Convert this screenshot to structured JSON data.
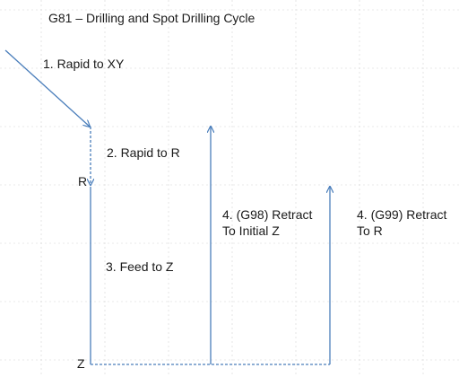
{
  "title": "G81 – Drilling and Spot Drilling Cycle",
  "steps": {
    "rapid_xy": "1.  Rapid to XY",
    "rapid_r": "2. Rapid to R",
    "feed_z": "3. Feed to Z",
    "retract_g98": {
      "line1": "4. (G98) Retract",
      "line2": "To Initial Z"
    },
    "retract_g99": {
      "line1": "4. (G99) Retract",
      "line2": "To R"
    }
  },
  "markers": {
    "r": "R",
    "z": "Z"
  },
  "colors": {
    "path": "#4a7ebb",
    "grid": "#d6d6d6",
    "text": "#1a1a1a"
  }
}
